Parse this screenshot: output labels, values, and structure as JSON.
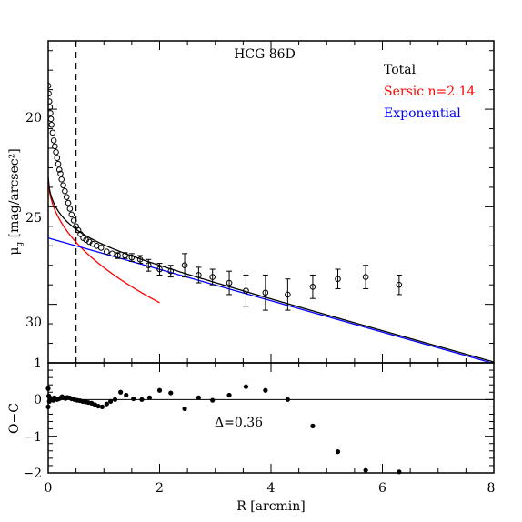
{
  "chart_data": [
    {
      "type": "scatter",
      "panel": "surface-brightness-profile",
      "title": "HCG 86D",
      "ylabel_main": "μ",
      "ylabel_sub": "g",
      "ylabel_unit": "[mag/arcsec²]",
      "xlim": [
        0,
        8
      ],
      "ylim": [
        33,
        16.5
      ],
      "y_inverted": true,
      "yticks": [
        20,
        25,
        30
      ],
      "ytick_labels": [
        "20",
        "25",
        "30"
      ],
      "vline_x": 0.5,
      "legend_placement": "top-right",
      "legend": [
        {
          "label": "Total",
          "color": "#000000"
        },
        {
          "label": "Sersic n=2.14",
          "color": "#ff0000"
        },
        {
          "label": "Exponential",
          "color": "#0000ff"
        }
      ],
      "sersic": {
        "n": 2.14,
        "mu_e": 27.7,
        "r_e": 0.82
      },
      "exponential": {
        "mu0": 26.6,
        "h": 1.35
      },
      "points": [
        {
          "x": 0.0,
          "y": 18.8
        },
        {
          "x": 0.01,
          "y": 19.2
        },
        {
          "x": 0.02,
          "y": 19.6
        },
        {
          "x": 0.03,
          "y": 19.9
        },
        {
          "x": 0.04,
          "y": 20.2
        },
        {
          "x": 0.05,
          "y": 20.5
        },
        {
          "x": 0.06,
          "y": 20.8
        },
        {
          "x": 0.08,
          "y": 21.2
        },
        {
          "x": 0.1,
          "y": 21.6
        },
        {
          "x": 0.12,
          "y": 21.9
        },
        {
          "x": 0.14,
          "y": 22.2
        },
        {
          "x": 0.16,
          "y": 22.5
        },
        {
          "x": 0.18,
          "y": 22.8
        },
        {
          "x": 0.2,
          "y": 23.1
        },
        {
          "x": 0.22,
          "y": 23.3
        },
        {
          "x": 0.24,
          "y": 23.6
        },
        {
          "x": 0.27,
          "y": 23.9
        },
        {
          "x": 0.3,
          "y": 24.2
        },
        {
          "x": 0.33,
          "y": 24.5
        },
        {
          "x": 0.36,
          "y": 24.8
        },
        {
          "x": 0.39,
          "y": 25.1
        },
        {
          "x": 0.42,
          "y": 25.4
        },
        {
          "x": 0.46,
          "y": 25.7
        },
        {
          "x": 0.5,
          "y": 26.0
        },
        {
          "x": 0.54,
          "y": 26.2
        },
        {
          "x": 0.58,
          "y": 26.4
        },
        {
          "x": 0.63,
          "y": 26.6
        },
        {
          "x": 0.68,
          "y": 26.7
        },
        {
          "x": 0.74,
          "y": 26.8
        },
        {
          "x": 0.8,
          "y": 26.9
        },
        {
          "x": 0.87,
          "y": 27.0
        },
        {
          "x": 0.95,
          "y": 27.1
        },
        {
          "x": 1.05,
          "y": 27.3
        },
        {
          "x": 1.15,
          "y": 27.4
        },
        {
          "x": 1.25,
          "y": 27.5,
          "err": 0.15
        },
        {
          "x": 1.38,
          "y": 27.5,
          "err": 0.15
        },
        {
          "x": 1.5,
          "y": 27.6,
          "err": 0.2
        },
        {
          "x": 1.65,
          "y": 27.7,
          "err": 0.2
        },
        {
          "x": 1.8,
          "y": 28.0,
          "err": 0.3
        },
        {
          "x": 2.0,
          "y": 28.2,
          "err": 0.3
        },
        {
          "x": 2.2,
          "y": 28.3,
          "err": 0.3
        },
        {
          "x": 2.45,
          "y": 28.0,
          "err": 0.6
        },
        {
          "x": 2.7,
          "y": 28.5,
          "err": 0.4
        },
        {
          "x": 2.95,
          "y": 28.6,
          "err": 0.4
        },
        {
          "x": 3.25,
          "y": 28.9,
          "err": 0.6
        },
        {
          "x": 3.55,
          "y": 29.3,
          "err": 0.8
        },
        {
          "x": 3.9,
          "y": 29.4,
          "err": 0.9
        },
        {
          "x": 4.3,
          "y": 29.5,
          "err": 0.8
        },
        {
          "x": 4.75,
          "y": 29.1,
          "err": 0.6
        },
        {
          "x": 5.2,
          "y": 28.7,
          "err": 0.5
        },
        {
          "x": 5.7,
          "y": 28.6,
          "err": 0.6
        },
        {
          "x": 6.3,
          "y": 29.0,
          "err": 0.5
        }
      ]
    },
    {
      "type": "scatter",
      "panel": "residuals",
      "xlabel": "R [arcmin]",
      "ylabel": "O−C",
      "xlim": [
        0,
        8
      ],
      "ylim": [
        -2,
        1
      ],
      "xticks": [
        0,
        2,
        4,
        6,
        8
      ],
      "xtick_labels": [
        "0",
        "2",
        "4",
        "6",
        "8"
      ],
      "yticks": [
        1,
        0,
        -1,
        -2
      ],
      "ytick_labels": [
        "1",
        "0",
        "−1",
        "−2"
      ],
      "annotation": "Δ=0.36",
      "zero_line": true,
      "points": [
        {
          "x": 0.0,
          "y": 0.3
        },
        {
          "x": 0.0,
          "y": -0.2
        },
        {
          "x": 0.01,
          "y": 0.1
        },
        {
          "x": 0.02,
          "y": -0.05
        },
        {
          "x": 0.03,
          "y": 0.05
        },
        {
          "x": 0.05,
          "y": 0.0
        },
        {
          "x": 0.07,
          "y": 0.02
        },
        {
          "x": 0.09,
          "y": -0.02
        },
        {
          "x": 0.11,
          "y": 0.05
        },
        {
          "x": 0.13,
          "y": 0.03
        },
        {
          "x": 0.16,
          "y": 0.0
        },
        {
          "x": 0.19,
          "y": 0.02
        },
        {
          "x": 0.22,
          "y": 0.04
        },
        {
          "x": 0.25,
          "y": 0.08
        },
        {
          "x": 0.28,
          "y": 0.05
        },
        {
          "x": 0.31,
          "y": 0.03
        },
        {
          "x": 0.34,
          "y": 0.06
        },
        {
          "x": 0.38,
          "y": 0.05
        },
        {
          "x": 0.42,
          "y": 0.02
        },
        {
          "x": 0.47,
          "y": 0.0
        },
        {
          "x": 0.52,
          "y": -0.02
        },
        {
          "x": 0.57,
          "y": -0.03
        },
        {
          "x": 0.62,
          "y": -0.05
        },
        {
          "x": 0.67,
          "y": -0.06
        },
        {
          "x": 0.72,
          "y": -0.08
        },
        {
          "x": 0.78,
          "y": -0.1
        },
        {
          "x": 0.84,
          "y": -0.14
        },
        {
          "x": 0.9,
          "y": -0.18
        },
        {
          "x": 0.97,
          "y": -0.2
        },
        {
          "x": 1.05,
          "y": -0.12
        },
        {
          "x": 1.12,
          "y": -0.05
        },
        {
          "x": 1.2,
          "y": 0.0
        },
        {
          "x": 1.3,
          "y": 0.2
        },
        {
          "x": 1.4,
          "y": 0.12
        },
        {
          "x": 1.53,
          "y": 0.02
        },
        {
          "x": 1.68,
          "y": 0.0
        },
        {
          "x": 1.82,
          "y": 0.05
        },
        {
          "x": 2.0,
          "y": 0.25
        },
        {
          "x": 2.2,
          "y": 0.18
        },
        {
          "x": 2.45,
          "y": -0.25
        },
        {
          "x": 2.7,
          "y": 0.05
        },
        {
          "x": 2.95,
          "y": -0.02
        },
        {
          "x": 3.25,
          "y": 0.12
        },
        {
          "x": 3.55,
          "y": 0.35
        },
        {
          "x": 3.9,
          "y": 0.25
        },
        {
          "x": 4.3,
          "y": 0.0
        },
        {
          "x": 4.75,
          "y": -0.72
        },
        {
          "x": 5.2,
          "y": -1.42
        },
        {
          "x": 5.7,
          "y": -1.93
        },
        {
          "x": 6.3,
          "y": -1.97
        }
      ]
    }
  ]
}
